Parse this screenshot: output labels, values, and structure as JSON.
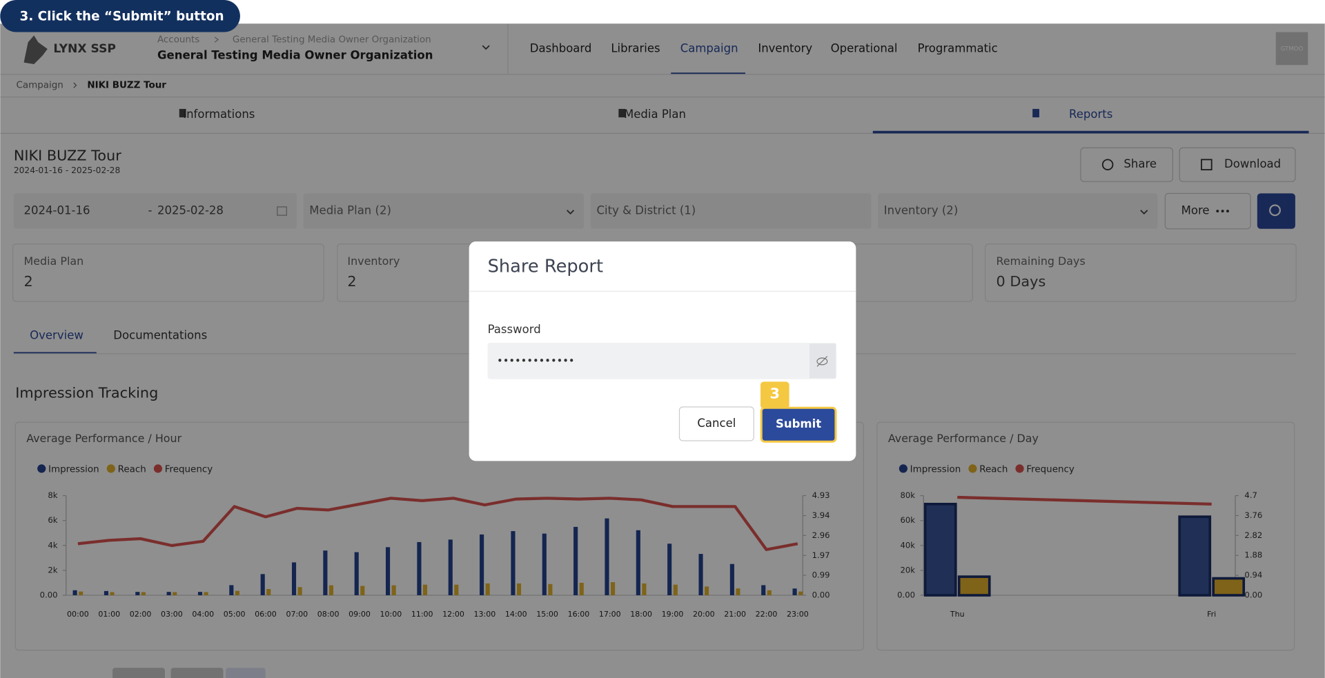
{
  "tutorial": {
    "step": "3. Click the “Submit” button"
  },
  "header": {
    "logo": "LYNX SSP",
    "breadcrumb_parent": "Accounts",
    "organization_small": "General Testing Media Owner Organization",
    "organization": "General Testing Media Owner Organization",
    "nav": [
      "Dashboard",
      "Libraries",
      "Campaign",
      "Inventory",
      "Operational",
      "Programmatic"
    ],
    "active_nav": 2,
    "avatar": "GTMOO"
  },
  "breadcrumb": [
    "Campaign",
    "NIKI BUZZ Tour"
  ],
  "tabs": [
    "Informations",
    "Media Plan",
    "Reports"
  ],
  "active_tab": 2,
  "campaign": {
    "title": "NIKI BUZZ Tour",
    "dates": "2024-01-16 - 2025-02-28"
  },
  "actions": [
    "Share",
    "Download"
  ],
  "filters": {
    "start": "2024-01-16",
    "separator": "-",
    "end": "2025-02-28",
    "media_plan": "Media Plan (2)",
    "city": "City & District (1)",
    "inventory": "Inventory (2)",
    "more": "More"
  },
  "stats": [
    {
      "label": "Media Plan",
      "value": 2
    },
    {
      "label": "Inventory",
      "value": 2
    },
    {
      "label": "Remaining Days",
      "value": "0 Days"
    }
  ],
  "subtabs": [
    "Overview",
    "Documentations"
  ],
  "section_title": "Impression Tracking",
  "chart_data": [
    {
      "type": "bar",
      "title": "Average Performance / Hour",
      "categories": [
        "00:00",
        "01:00",
        "02:00",
        "03:00",
        "04:00",
        "05:00",
        "06:00",
        "07:00",
        "08:00",
        "09:00",
        "10:00",
        "11:00",
        "12:00",
        "13:00",
        "14:00",
        "15:00",
        "16:00",
        "17:00",
        "18:00",
        "19:00",
        "20:00",
        "21:00",
        "22:00",
        "23:00"
      ],
      "series": [
        {
          "name": "Impression",
          "color": "#25428f",
          "values": [
            400,
            340,
            270,
            270,
            270,
            810,
            1700,
            2640,
            3590,
            3460,
            3860,
            4270,
            4470,
            4880,
            5150,
            4950,
            5490,
            6170,
            5220,
            4140,
            3320,
            2510,
            810,
            540
          ]
        },
        {
          "name": "Reach",
          "color": "#e0b12e",
          "values": [
            300,
            250,
            250,
            250,
            250,
            350,
            500,
            650,
            800,
            750,
            800,
            850,
            850,
            950,
            950,
            900,
            1000,
            1050,
            950,
            850,
            700,
            550,
            400,
            300
          ]
        },
        {
          "name": "Frequency",
          "color": "#d9534f",
          "type": "line",
          "axis": "y2",
          "values": [
            2.55,
            2.72,
            2.8,
            2.46,
            2.67,
            4.39,
            3.88,
            4.3,
            4.22,
            4.51,
            4.8,
            4.68,
            4.8,
            4.47,
            4.76,
            4.8,
            4.76,
            4.8,
            4.72,
            4.39,
            4.39,
            4.39,
            2.26,
            2.55
          ]
        }
      ],
      "ylim": [
        0,
        8000
      ],
      "yticks": [
        {
          "value": 0,
          "label": "0.00"
        },
        {
          "value": 2000,
          "label": "2k"
        },
        {
          "value": 4000,
          "label": "4k"
        },
        {
          "value": 6000,
          "label": "6k"
        },
        {
          "value": 8000,
          "label": "8k"
        }
      ],
      "y2lim": [
        0,
        4.93
      ],
      "y2ticks": [
        {
          "value": 0,
          "label": "0.00"
        },
        0.99,
        1.97,
        2.96,
        3.94,
        4.93
      ]
    },
    {
      "type": "bar",
      "title": "Average Performance / Day",
      "categories": [
        "Thu",
        "Fri"
      ],
      "series": [
        {
          "name": "Impression",
          "color": "#25428f",
          "values": [
            73220,
            63050
          ]
        },
        {
          "name": "Reach",
          "color": "#e0b12e",
          "values": [
            14900,
            13560
          ]
        },
        {
          "name": "Frequency",
          "color": "#d9534f",
          "type": "line",
          "axis": "y2",
          "values": [
            4.62,
            4.3
          ]
        }
      ],
      "ylim": [
        0,
        80000
      ],
      "yticks": [
        {
          "value": 0,
          "label": "0.00"
        },
        {
          "value": 20000,
          "label": "20k"
        },
        {
          "value": 40000,
          "label": "40k"
        },
        {
          "value": 60000,
          "label": "60k"
        },
        {
          "value": 80000,
          "label": "80k"
        }
      ],
      "y2lim": [
        0,
        4.7
      ],
      "y2ticks": [
        {
          "value": 0,
          "label": "0.00"
        },
        0.94,
        1.88,
        2.82,
        3.76,
        4.7
      ]
    }
  ],
  "modal": {
    "title": "Share Report",
    "password_label": "Password",
    "password_value": "•••••••••••••",
    "cancel": "Cancel",
    "submit": "Submit",
    "step_badge": "3"
  }
}
